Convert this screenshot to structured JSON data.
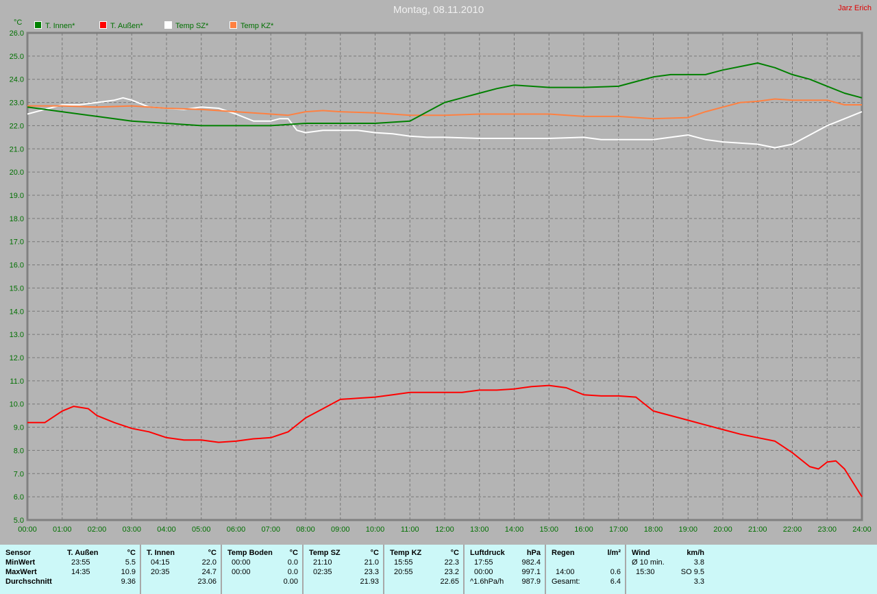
{
  "header": {
    "title": "Montag, 08.11.2010",
    "author": "Jarz Erich"
  },
  "chart_data": {
    "type": "line",
    "title": "Montag, 08.11.2010",
    "ylabel": "°C",
    "xlabel": "",
    "ylim": [
      5.0,
      26.0
    ],
    "xlim": [
      "00:00",
      "24:00"
    ],
    "grid": true,
    "legend_position": "top-left",
    "y_ticks": [
      "5.0",
      "6.0",
      "7.0",
      "8.0",
      "9.0",
      "10.0",
      "11.0",
      "12.0",
      "13.0",
      "14.0",
      "15.0",
      "16.0",
      "17.0",
      "18.0",
      "19.0",
      "20.0",
      "21.0",
      "22.0",
      "23.0",
      "24.0",
      "25.0",
      "26.0"
    ],
    "x_ticks": [
      "00:00",
      "01:00",
      "02:00",
      "03:00",
      "04:00",
      "05:00",
      "06:00",
      "07:00",
      "08:00",
      "09:00",
      "10:00",
      "11:00",
      "12:00",
      "13:00",
      "14:00",
      "15:00",
      "16:00",
      "17:00",
      "18:00",
      "19:00",
      "20:00",
      "21:00",
      "22:00",
      "23:00",
      "24:00"
    ],
    "series": [
      {
        "name": "T. Innen*",
        "color": "#008000",
        "points": [
          [
            "00:00",
            22.8
          ],
          [
            "01:00",
            22.6
          ],
          [
            "02:00",
            22.4
          ],
          [
            "03:00",
            22.2
          ],
          [
            "04:00",
            22.1
          ],
          [
            "05:00",
            22.0
          ],
          [
            "06:00",
            22.0
          ],
          [
            "07:00",
            22.0
          ],
          [
            "08:00",
            22.1
          ],
          [
            "09:00",
            22.1
          ],
          [
            "10:00",
            22.1
          ],
          [
            "11:00",
            22.2
          ],
          [
            "11:30",
            22.6
          ],
          [
            "12:00",
            23.0
          ],
          [
            "12:30",
            23.2
          ],
          [
            "13:00",
            23.4
          ],
          [
            "13:30",
            23.6
          ],
          [
            "14:00",
            23.75
          ],
          [
            "14:30",
            23.7
          ],
          [
            "15:00",
            23.65
          ],
          [
            "16:00",
            23.65
          ],
          [
            "17:00",
            23.7
          ],
          [
            "17:30",
            23.9
          ],
          [
            "18:00",
            24.1
          ],
          [
            "18:30",
            24.2
          ],
          [
            "19:00",
            24.2
          ],
          [
            "19:30",
            24.2
          ],
          [
            "20:00",
            24.4
          ],
          [
            "20:30",
            24.55
          ],
          [
            "21:00",
            24.7
          ],
          [
            "21:30",
            24.5
          ],
          [
            "22:00",
            24.2
          ],
          [
            "22:30",
            24.0
          ],
          [
            "23:00",
            23.7
          ],
          [
            "23:30",
            23.4
          ],
          [
            "24:00",
            23.2
          ]
        ]
      },
      {
        "name": "T. Außen*",
        "color": "#ff0000",
        "points": [
          [
            "00:00",
            9.2
          ],
          [
            "00:30",
            9.2
          ],
          [
            "01:00",
            9.7
          ],
          [
            "01:20",
            9.9
          ],
          [
            "01:45",
            9.8
          ],
          [
            "02:00",
            9.5
          ],
          [
            "02:30",
            9.2
          ],
          [
            "03:00",
            8.95
          ],
          [
            "03:30",
            8.8
          ],
          [
            "04:00",
            8.55
          ],
          [
            "04:30",
            8.45
          ],
          [
            "05:00",
            8.45
          ],
          [
            "05:30",
            8.35
          ],
          [
            "06:00",
            8.4
          ],
          [
            "06:30",
            8.5
          ],
          [
            "07:00",
            8.55
          ],
          [
            "07:30",
            8.8
          ],
          [
            "08:00",
            9.4
          ],
          [
            "08:30",
            9.8
          ],
          [
            "09:00",
            10.2
          ],
          [
            "09:30",
            10.25
          ],
          [
            "10:00",
            10.3
          ],
          [
            "10:30",
            10.4
          ],
          [
            "11:00",
            10.5
          ],
          [
            "11:30",
            10.5
          ],
          [
            "12:00",
            10.5
          ],
          [
            "12:30",
            10.5
          ],
          [
            "13:00",
            10.6
          ],
          [
            "13:30",
            10.6
          ],
          [
            "14:00",
            10.65
          ],
          [
            "14:30",
            10.75
          ],
          [
            "15:00",
            10.8
          ],
          [
            "15:30",
            10.7
          ],
          [
            "16:00",
            10.4
          ],
          [
            "16:30",
            10.35
          ],
          [
            "17:00",
            10.35
          ],
          [
            "17:30",
            10.3
          ],
          [
            "18:00",
            9.7
          ],
          [
            "18:30",
            9.5
          ],
          [
            "19:00",
            9.3
          ],
          [
            "19:30",
            9.1
          ],
          [
            "20:00",
            8.9
          ],
          [
            "20:30",
            8.7
          ],
          [
            "21:00",
            8.55
          ],
          [
            "21:30",
            8.4
          ],
          [
            "22:00",
            7.9
          ],
          [
            "22:30",
            7.3
          ],
          [
            "22:45",
            7.2
          ],
          [
            "23:00",
            7.5
          ],
          [
            "23:15",
            7.55
          ],
          [
            "23:30",
            7.2
          ],
          [
            "24:00",
            6.0
          ]
        ]
      },
      {
        "name": "Temp SZ*",
        "color": "#ffffff",
        "points": [
          [
            "00:00",
            22.5
          ],
          [
            "00:30",
            22.7
          ],
          [
            "01:00",
            22.9
          ],
          [
            "01:30",
            22.9
          ],
          [
            "02:00",
            23.0
          ],
          [
            "02:30",
            23.1
          ],
          [
            "02:45",
            23.2
          ],
          [
            "03:00",
            23.1
          ],
          [
            "03:30",
            22.8
          ],
          [
            "04:00",
            22.75
          ],
          [
            "04:30",
            22.7
          ],
          [
            "05:00",
            22.8
          ],
          [
            "05:30",
            22.75
          ],
          [
            "06:00",
            22.5
          ],
          [
            "06:30",
            22.2
          ],
          [
            "07:00",
            22.2
          ],
          [
            "07:15",
            22.3
          ],
          [
            "07:30",
            22.3
          ],
          [
            "07:45",
            21.8
          ],
          [
            "08:00",
            21.7
          ],
          [
            "08:30",
            21.8
          ],
          [
            "09:00",
            21.8
          ],
          [
            "09:30",
            21.8
          ],
          [
            "10:00",
            21.7
          ],
          [
            "10:30",
            21.65
          ],
          [
            "11:00",
            21.55
          ],
          [
            "11:30",
            21.5
          ],
          [
            "12:00",
            21.5
          ],
          [
            "13:00",
            21.45
          ],
          [
            "14:00",
            21.45
          ],
          [
            "15:00",
            21.45
          ],
          [
            "16:00",
            21.5
          ],
          [
            "16:30",
            21.4
          ],
          [
            "17:00",
            21.4
          ],
          [
            "18:00",
            21.4
          ],
          [
            "18:30",
            21.5
          ],
          [
            "19:00",
            21.6
          ],
          [
            "19:30",
            21.4
          ],
          [
            "20:00",
            21.3
          ],
          [
            "21:00",
            21.2
          ],
          [
            "21:30",
            21.05
          ],
          [
            "22:00",
            21.2
          ],
          [
            "22:30",
            21.6
          ],
          [
            "23:00",
            22.0
          ],
          [
            "23:30",
            22.3
          ],
          [
            "24:00",
            22.6
          ]
        ]
      },
      {
        "name": "Temp KZ*",
        "color": "#ff8040",
        "points": [
          [
            "00:00",
            22.85
          ],
          [
            "01:00",
            22.85
          ],
          [
            "02:00",
            22.8
          ],
          [
            "03:00",
            22.85
          ],
          [
            "03:30",
            22.8
          ],
          [
            "04:00",
            22.75
          ],
          [
            "05:00",
            22.7
          ],
          [
            "06:00",
            22.6
          ],
          [
            "07:00",
            22.5
          ],
          [
            "07:30",
            22.45
          ],
          [
            "08:00",
            22.6
          ],
          [
            "08:30",
            22.65
          ],
          [
            "09:00",
            22.6
          ],
          [
            "10:00",
            22.55
          ],
          [
            "11:00",
            22.45
          ],
          [
            "12:00",
            22.45
          ],
          [
            "13:00",
            22.5
          ],
          [
            "14:00",
            22.5
          ],
          [
            "15:00",
            22.5
          ],
          [
            "16:00",
            22.4
          ],
          [
            "17:00",
            22.4
          ],
          [
            "18:00",
            22.3
          ],
          [
            "19:00",
            22.35
          ],
          [
            "19:30",
            22.6
          ],
          [
            "20:00",
            22.8
          ],
          [
            "20:30",
            23.0
          ],
          [
            "21:00",
            23.05
          ],
          [
            "21:30",
            23.15
          ],
          [
            "22:00",
            23.1
          ],
          [
            "23:00",
            23.1
          ],
          [
            "23:30",
            22.9
          ],
          [
            "24:00",
            22.9
          ]
        ]
      }
    ]
  },
  "table": {
    "row_labels": [
      "Sensor",
      "MinWert",
      "MaxWert",
      "Durchschnitt"
    ],
    "columns": [
      {
        "name": "T. Außen",
        "unit": "°C",
        "rows": [
          [
            "23:55",
            "5.5"
          ],
          [
            "14:35",
            "10.9"
          ],
          [
            "",
            "9.36"
          ]
        ]
      },
      {
        "name": "T. Innen",
        "unit": "°C",
        "rows": [
          [
            "04:15",
            "22.0"
          ],
          [
            "20:35",
            "24.7"
          ],
          [
            "",
            "23.06"
          ]
        ]
      },
      {
        "name": "Temp Boden",
        "unit": "°C",
        "rows": [
          [
            "00:00",
            "0.0"
          ],
          [
            "00:00",
            "0.0"
          ],
          [
            "",
            "0.00"
          ]
        ]
      },
      {
        "name": "Temp SZ",
        "unit": "°C",
        "rows": [
          [
            "21:10",
            "21.0"
          ],
          [
            "02:35",
            "23.3"
          ],
          [
            "",
            "21.93"
          ]
        ]
      },
      {
        "name": "Temp KZ",
        "unit": "°C",
        "rows": [
          [
            "15:55",
            "22.3"
          ],
          [
            "20:55",
            "23.2"
          ],
          [
            "",
            "22.65"
          ]
        ]
      },
      {
        "name": "Luftdruck",
        "unit": "hPa",
        "rows": [
          [
            "17:55",
            "982.4"
          ],
          [
            "00:00",
            "997.1"
          ],
          [
            "^1.6hPa/h",
            "987.9"
          ]
        ]
      },
      {
        "name": "Regen",
        "unit": "l/m²",
        "rows": [
          [
            "",
            ""
          ],
          [
            "14:00",
            "0.6"
          ],
          [
            "Gesamt:",
            "6.4"
          ]
        ]
      },
      {
        "name": "Wind",
        "unit": "km/h",
        "rows": [
          [
            "Ø 10 min.",
            "3.8"
          ],
          [
            "15:30",
            "SO 9.5"
          ],
          [
            "",
            "3.3"
          ]
        ]
      }
    ]
  }
}
